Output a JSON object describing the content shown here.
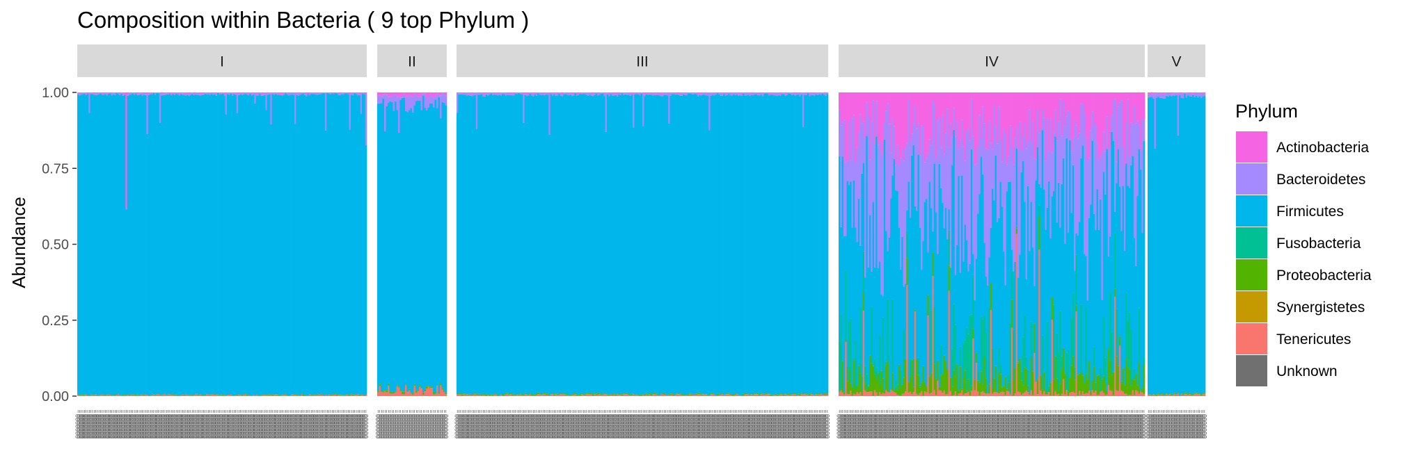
{
  "chart_data": {
    "type": "bar",
    "stacked": true,
    "title": "Composition within Bacteria ( 9 top Phylum )",
    "ylabel": "Abundance",
    "xlabel": "",
    "ylim": [
      0,
      1
    ],
    "yticks": [
      "0.00",
      "0.25",
      "0.50",
      "0.75",
      "1.00"
    ],
    "facets": [
      {
        "label": "I",
        "n_samples": 180,
        "typical": {
          "Actinobacteria": 0.003,
          "Bacteroidetes": 0.004,
          "Fusobacteria": 0.0,
          "Proteobacteria": 0.002,
          "Synergistetes": 0.0,
          "Tenericutes": 0.003,
          "Unknown": 0.0
        },
        "notes": "one sample with Actinobacteria 0.38; last sample Bacteroidetes 0.17"
      },
      {
        "label": "II",
        "n_samples": 40,
        "typical": {
          "Actinobacteria": 0.01,
          "Bacteroidetes": 0.03,
          "Fusobacteria": 0.0,
          "Proteobacteria": 0.005,
          "Synergistetes": 0.0,
          "Tenericutes": 0.02,
          "Unknown": 0.0
        },
        "notes": "several samples Bacteroidetes up to 0.25"
      },
      {
        "label": "III",
        "n_samples": 230,
        "typical": {
          "Actinobacteria": 0.003,
          "Bacteroidetes": 0.005,
          "Fusobacteria": 0.0,
          "Proteobacteria": 0.003,
          "Synergistetes": 0.0,
          "Tenericutes": 0.004,
          "Unknown": 0.0
        },
        "notes": "few samples Bacteroidetes up to 0.15"
      },
      {
        "label": "IV",
        "n_samples": 190,
        "typical": {
          "Actinobacteria": 0.12,
          "Bacteroidetes": 0.3,
          "Fusobacteria": 0.1,
          "Proteobacteria": 0.06,
          "Synergistetes": 0.0,
          "Tenericutes": 0.02,
          "Unknown": 0.0
        },
        "notes": "Firmicutes ranges roughly 0.1 to 0.6"
      },
      {
        "label": "V",
        "n_samples": 35,
        "typical": {
          "Actinobacteria": 0.003,
          "Bacteroidetes": 0.01,
          "Fusobacteria": 0.0,
          "Proteobacteria": 0.003,
          "Synergistetes": 0.0,
          "Tenericutes": 0.005,
          "Unknown": 0.0
        },
        "notes": "one sample Bacteroidetes about 0.18"
      }
    ],
    "legend": {
      "title": "Phylum",
      "position": "right",
      "items": [
        {
          "name": "Actinobacteria",
          "color": "#F564E3"
        },
        {
          "name": "Bacteroidetes",
          "color": "#A58AFF"
        },
        {
          "name": "Firmicutes",
          "color": "#00B6EB"
        },
        {
          "name": "Fusobacteria",
          "color": "#00C094"
        },
        {
          "name": "Proteobacteria",
          "color": "#53B400"
        },
        {
          "name": "Synergistetes",
          "color": "#C49A00"
        },
        {
          "name": "Tenericutes",
          "color": "#F8766D"
        },
        {
          "name": "Unknown",
          "color": "#707070"
        }
      ]
    },
    "grid": false
  }
}
